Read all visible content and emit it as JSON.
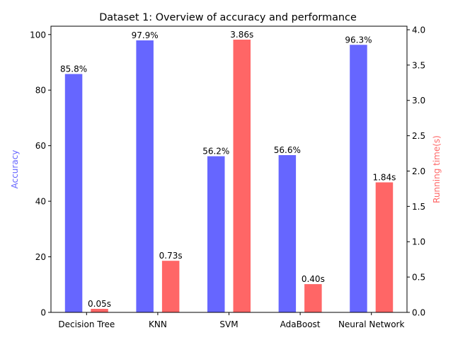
{
  "chart_data": {
    "type": "bar",
    "title": "Dataset 1: Overview of accuracy and performance",
    "categories": [
      "Decision Tree",
      "KNN",
      "SVM",
      "AdaBoost",
      "Neural Network"
    ],
    "series": [
      {
        "axis": "left",
        "values": [
          85.8,
          97.9,
          56.2,
          56.6,
          96.3
        ],
        "data_labels": [
          "85.8%",
          "97.9%",
          "56.2%",
          "56.6%",
          "96.3%"
        ],
        "color": "#6666ff"
      },
      {
        "axis": "right",
        "values": [
          0.05,
          0.73,
          3.86,
          0.4,
          1.84
        ],
        "data_labels": [
          "0.05s",
          "0.73s",
          "3.86s",
          "0.40s",
          "1.84s"
        ],
        "color": "#ff6666"
      }
    ],
    "ylabel": "Accuracy",
    "ylabel_color": "#6666ff",
    "ylim": [
      0,
      103
    ],
    "yticks": [
      0,
      20,
      40,
      60,
      80,
      100
    ],
    "y2label": "Running time(s)",
    "y2label_color": "#ff6666",
    "y2lim": [
      0,
      4.05
    ],
    "y2ticks": [
      "0.0",
      "0.5",
      "1.0",
      "1.5",
      "2.0",
      "2.5",
      "3.0",
      "3.5",
      "4.0"
    ],
    "grid": false,
    "legend": "none"
  }
}
